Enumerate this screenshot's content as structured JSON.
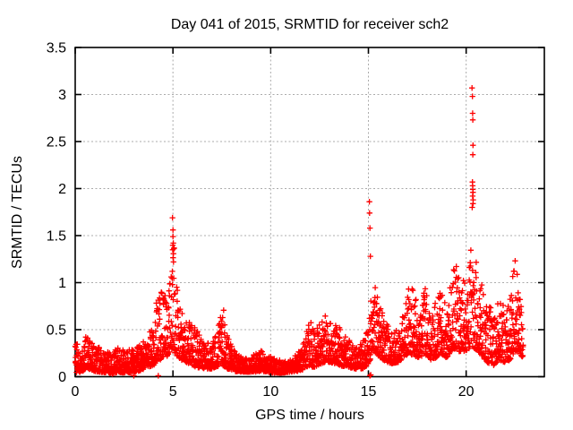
{
  "chart_data": {
    "type": "scatter",
    "title": "Day 041 of 2015, SRMTID for receiver sch2",
    "xlabel": "GPS time / hours",
    "ylabel": "SRMTID / TECUs",
    "xlim": [
      0,
      24
    ],
    "ylim": [
      0,
      3.5
    ],
    "xtick_values": [
      0,
      5,
      10,
      15,
      20
    ],
    "xtick_labels": [
      "0",
      "5",
      "10",
      "15",
      "20"
    ],
    "ytick_values": [
      0,
      0.5,
      1,
      1.5,
      2,
      2.5,
      3,
      3.5
    ],
    "ytick_labels": [
      "0",
      "0.5",
      "1",
      "1.5",
      "2",
      "2.5",
      "3",
      "3.5"
    ],
    "grid": true,
    "legend": "none",
    "marker": "plus-icon",
    "marker_color": "#ff0000",
    "grid_color": "#ababab",
    "axis_color": "#000000",
    "background_color": "#ffffff",
    "sampling": {
      "t_start": 0,
      "t_end": 22.92,
      "step_hours": 0.0083333,
      "seed": 41,
      "shape_exponent": 1.8
    },
    "envelope": [
      [
        0.0,
        0.04,
        0.42
      ],
      [
        0.15,
        0.05,
        0.35
      ],
      [
        0.3,
        0.05,
        0.28
      ],
      [
        0.55,
        0.08,
        0.45
      ],
      [
        0.8,
        0.08,
        0.4
      ],
      [
        1.0,
        0.05,
        0.3
      ],
      [
        1.3,
        0.05,
        0.35
      ],
      [
        1.6,
        0.04,
        0.28
      ],
      [
        1.9,
        0.03,
        0.24
      ],
      [
        2.2,
        0.05,
        0.33
      ],
      [
        2.5,
        0.04,
        0.28
      ],
      [
        2.8,
        0.04,
        0.3
      ],
      [
        3.1,
        0.05,
        0.3
      ],
      [
        3.4,
        0.07,
        0.36
      ],
      [
        3.7,
        0.1,
        0.42
      ],
      [
        4.0,
        0.12,
        0.6
      ],
      [
        4.2,
        0.15,
        0.85
      ],
      [
        4.45,
        0.2,
        0.92
      ],
      [
        4.7,
        0.22,
        1.0
      ],
      [
        4.9,
        0.28,
        1.3
      ],
      [
        5.0,
        0.3,
        1.7
      ],
      [
        5.1,
        0.25,
        1.15
      ],
      [
        5.3,
        0.2,
        0.78
      ],
      [
        5.6,
        0.15,
        0.62
      ],
      [
        5.9,
        0.13,
        0.58
      ],
      [
        6.2,
        0.1,
        0.5
      ],
      [
        6.5,
        0.09,
        0.42
      ],
      [
        6.8,
        0.08,
        0.36
      ],
      [
        7.1,
        0.09,
        0.42
      ],
      [
        7.35,
        0.12,
        0.6
      ],
      [
        7.55,
        0.12,
        0.77
      ],
      [
        7.8,
        0.08,
        0.42
      ],
      [
        8.1,
        0.06,
        0.3
      ],
      [
        8.4,
        0.05,
        0.22
      ],
      [
        8.8,
        0.05,
        0.2
      ],
      [
        9.2,
        0.05,
        0.24
      ],
      [
        9.5,
        0.06,
        0.29
      ],
      [
        9.8,
        0.05,
        0.24
      ],
      [
        10.2,
        0.04,
        0.19
      ],
      [
        10.6,
        0.04,
        0.18
      ],
      [
        11.0,
        0.05,
        0.2
      ],
      [
        11.4,
        0.06,
        0.26
      ],
      [
        11.7,
        0.08,
        0.38
      ],
      [
        11.95,
        0.12,
        0.62
      ],
      [
        12.2,
        0.1,
        0.52
      ],
      [
        12.5,
        0.13,
        0.56
      ],
      [
        12.8,
        0.16,
        0.66
      ],
      [
        13.1,
        0.15,
        0.62
      ],
      [
        13.4,
        0.13,
        0.55
      ],
      [
        13.7,
        0.11,
        0.48
      ],
      [
        14.0,
        0.1,
        0.4
      ],
      [
        14.4,
        0.08,
        0.33
      ],
      [
        14.8,
        0.09,
        0.4
      ],
      [
        15.05,
        0.15,
        0.7
      ],
      [
        15.2,
        0.28,
        1.08
      ],
      [
        15.4,
        0.25,
        0.92
      ],
      [
        15.6,
        0.2,
        0.75
      ],
      [
        15.9,
        0.16,
        0.58
      ],
      [
        16.2,
        0.14,
        0.5
      ],
      [
        16.5,
        0.15,
        0.52
      ],
      [
        16.8,
        0.2,
        0.72
      ],
      [
        17.05,
        0.25,
        1.05
      ],
      [
        17.3,
        0.22,
        0.92
      ],
      [
        17.6,
        0.2,
        0.78
      ],
      [
        17.9,
        0.24,
        0.95
      ],
      [
        18.2,
        0.18,
        0.7
      ],
      [
        18.45,
        0.2,
        0.8
      ],
      [
        18.7,
        0.25,
        0.95
      ],
      [
        19.0,
        0.2,
        0.78
      ],
      [
        19.25,
        0.28,
        1.05
      ],
      [
        19.45,
        0.3,
        1.22
      ],
      [
        19.7,
        0.26,
        1.0
      ],
      [
        20.0,
        0.28,
        1.1
      ],
      [
        20.3,
        0.32,
        1.45
      ],
      [
        20.55,
        0.28,
        1.2
      ],
      [
        20.8,
        0.22,
        1.05
      ],
      [
        21.1,
        0.15,
        0.8
      ],
      [
        21.4,
        0.12,
        0.68
      ],
      [
        21.7,
        0.18,
        0.88
      ],
      [
        22.0,
        0.15,
        0.78
      ],
      [
        22.25,
        0.18,
        0.85
      ],
      [
        22.5,
        0.28,
        1.3
      ],
      [
        22.7,
        0.25,
        1.0
      ],
      [
        22.92,
        0.2,
        0.55
      ]
    ],
    "outliers": [
      [
        4.98,
        1.69
      ],
      [
        5.0,
        1.56
      ],
      [
        5.0,
        1.49
      ],
      [
        5.02,
        1.42
      ],
      [
        4.99,
        1.35
      ],
      [
        5.03,
        1.22
      ],
      [
        4.97,
        1.12
      ],
      [
        15.05,
        1.86
      ],
      [
        15.06,
        1.74
      ],
      [
        15.08,
        1.58
      ],
      [
        15.1,
        1.28
      ],
      [
        20.3,
        3.07
      ],
      [
        20.32,
        2.98
      ],
      [
        20.33,
        2.8
      ],
      [
        20.34,
        2.73
      ],
      [
        20.35,
        2.46
      ],
      [
        20.34,
        2.36
      ],
      [
        20.32,
        2.07
      ],
      [
        20.33,
        2.03
      ],
      [
        20.34,
        1.99
      ],
      [
        20.35,
        1.96
      ],
      [
        20.33,
        1.92
      ],
      [
        20.36,
        1.88
      ],
      [
        20.35,
        1.84
      ],
      [
        20.31,
        1.8
      ],
      [
        3.0,
        0.01
      ],
      [
        4.25,
        0.01
      ],
      [
        15.08,
        0.01
      ],
      [
        15.12,
        0.02
      ]
    ]
  }
}
